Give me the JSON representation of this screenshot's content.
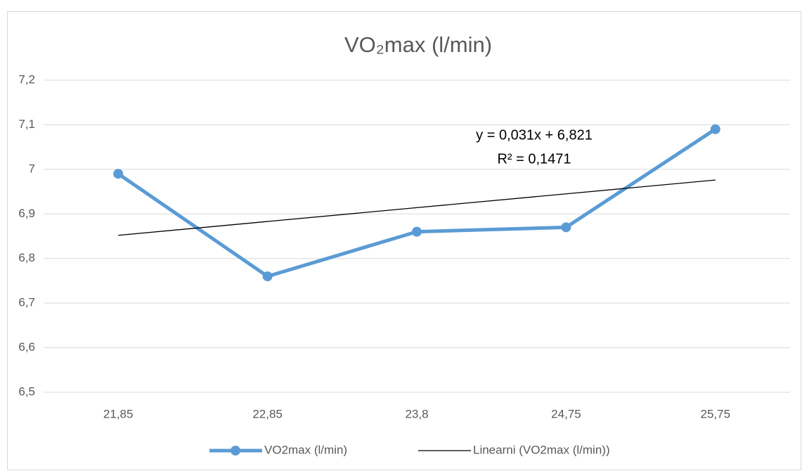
{
  "chart_data": {
    "type": "line",
    "title": "VO₂max (l/min)",
    "categories": [
      "21,85",
      "22,85",
      "23,8",
      "24,75",
      "25,75"
    ],
    "series": [
      {
        "name": "VO2max (l/min)",
        "color": "#5b9bd5",
        "values": [
          6.99,
          6.76,
          6.86,
          6.87,
          7.09
        ]
      },
      {
        "name": "Linearni (VO2max (l/min))",
        "color": "#000000",
        "values": [
          6.852,
          6.883,
          6.914,
          6.945,
          6.976
        ]
      }
    ],
    "annotations": [
      "y = 0,031x + 6,821",
      "R² = 0,1471"
    ],
    "ylim": [
      6.5,
      7.2
    ],
    "yticks": [
      {
        "value": 6.5,
        "label": "6,5"
      },
      {
        "value": 6.6,
        "label": "6,6"
      },
      {
        "value": 6.7,
        "label": "6,7"
      },
      {
        "value": 6.8,
        "label": "6,8"
      },
      {
        "value": 6.9,
        "label": "6,9"
      },
      7,
      {
        "value": 7.1,
        "label": "7,1"
      },
      {
        "value": 7.2,
        "label": "7,2"
      }
    ],
    "grid": true,
    "legend": "bottom"
  }
}
